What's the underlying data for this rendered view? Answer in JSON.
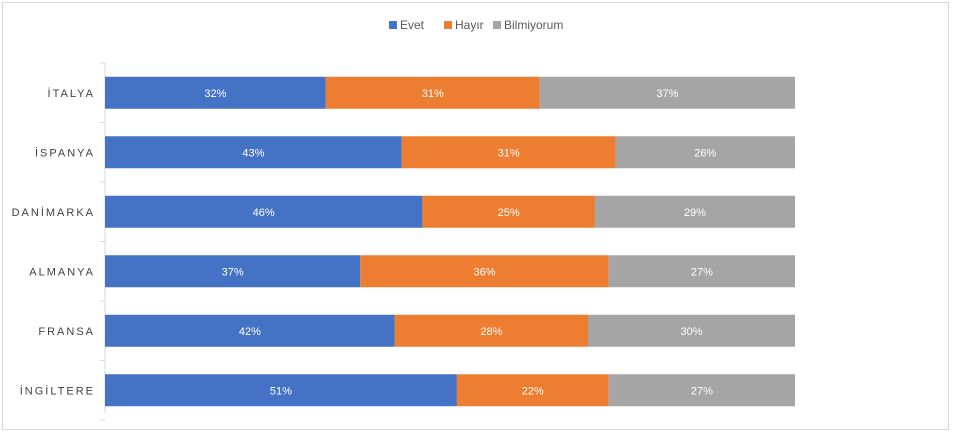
{
  "chart_data": {
    "type": "bar",
    "orientation": "horizontal",
    "stacked": "100%",
    "categories": [
      "İTALYA",
      "İSPANYA",
      "DANİMARKA",
      "ALMANYA",
      "FRANSA",
      "İNGİLTERE"
    ],
    "series": [
      {
        "name": "Evet",
        "color": "#4472C4",
        "values": [
          32,
          43,
          46,
          37,
          42,
          51
        ],
        "labels": [
          "32%",
          "43%",
          "46%",
          "37%",
          "42%",
          "51%"
        ]
      },
      {
        "name": "Hayır",
        "color": "#ED7D31",
        "values": [
          31,
          31,
          25,
          36,
          28,
          22
        ],
        "labels": [
          "31%",
          "31%",
          "25%",
          "36%",
          "28%",
          "22%"
        ]
      },
      {
        "name": "Bilmiyorum",
        "color": "#A5A5A5",
        "values": [
          37,
          26,
          29,
          27,
          30,
          27
        ],
        "labels": [
          "37%",
          "26%",
          "29%",
          "27%",
          "30%",
          "27%"
        ]
      }
    ],
    "xlim": [
      0,
      100
    ],
    "legend_position": "top",
    "grid": false
  }
}
